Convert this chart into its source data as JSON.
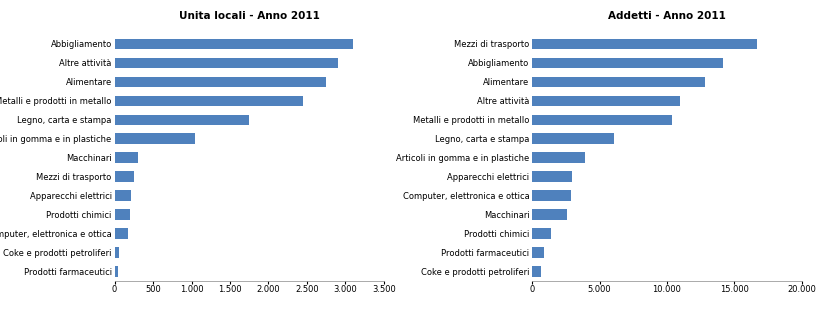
{
  "title1": "Unita locali - Anno 2011",
  "title2": "Addetti - Anno 2011",
  "chart1_labels": [
    "Abbigliamento",
    "Altre attività",
    "Alimentare",
    "Metalli e prodotti in metallo",
    "Legno, carta e stampa",
    "Articoli in gomma e in plastiche",
    "Macchinari",
    "Mezzi di trasporto",
    "Apparecchi elettrici",
    "Prodotti chimici",
    "Computer, elettronica e ottica",
    "Coke e prodotti petroliferi",
    "Prodotti farmaceutici"
  ],
  "chart1_values": [
    3100,
    2900,
    2750,
    2450,
    1750,
    1050,
    300,
    250,
    220,
    200,
    175,
    60,
    50
  ],
  "chart2_labels": [
    "Mezzi di trasporto",
    "Abbigliamento",
    "Alimentare",
    "Altre attività",
    "Metalli e prodotti in metallo",
    "Legno, carta e stampa",
    "Articoli in gomma e in plastiche",
    "Apparecchi elettrici",
    "Computer, elettronica e ottica",
    "Macchinari",
    "Prodotti chimici",
    "Prodotti farmaceutici",
    "Coke e prodotti petroliferi"
  ],
  "chart2_values": [
    16700,
    14200,
    12800,
    11000,
    10400,
    6100,
    3900,
    2950,
    2850,
    2600,
    1400,
    900,
    650
  ],
  "bar_color": "#4F81BD",
  "xlim1": [
    0,
    3500
  ],
  "xlim2": [
    0,
    20000
  ],
  "xticks1": [
    0,
    500,
    1000,
    1500,
    2000,
    2500,
    3000,
    3500
  ],
  "xticks2": [
    0,
    5000,
    10000,
    15000,
    20000
  ],
  "xticklabels1": [
    "0",
    "500",
    "1.000",
    "1.500",
    "2.000",
    "2.500",
    "3.000",
    "3.500"
  ],
  "xticklabels2": [
    "0",
    "5.000",
    "10.000",
    "15.000",
    "20.000"
  ],
  "title_fontsize": 7.5,
  "label_fontsize": 6.0,
  "tick_fontsize": 6.0
}
